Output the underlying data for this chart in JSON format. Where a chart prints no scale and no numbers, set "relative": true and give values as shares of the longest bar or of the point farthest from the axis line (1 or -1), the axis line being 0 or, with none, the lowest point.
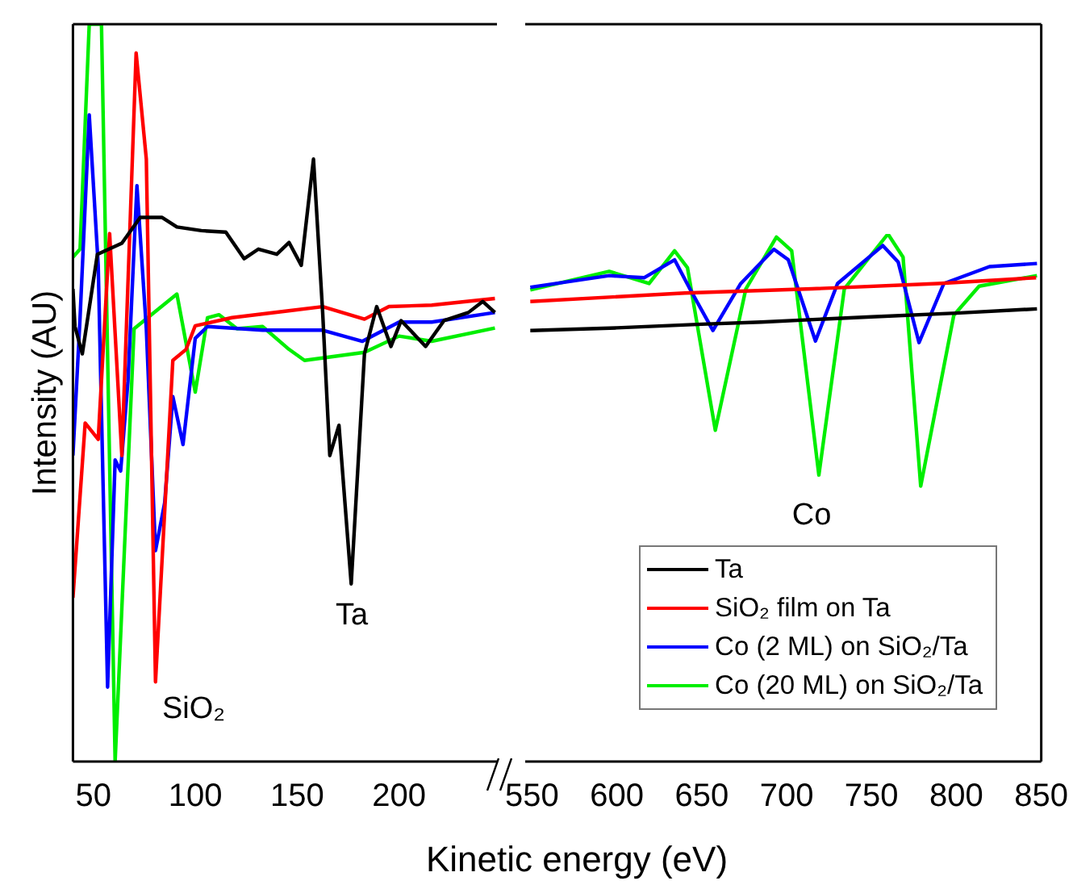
{
  "chart_data": [
    {
      "type": "line",
      "xlim": [
        40,
        248
      ],
      "xticks": [
        50,
        100,
        150,
        200
      ],
      "relative": true,
      "tick_labels": "x",
      "ylabel": "Intensity (AU)",
      "xlabel": "Kinetic energy (eV)",
      "annotations": [
        "SiO₂",
        "Ta"
      ],
      "series": [
        {
          "color": "#000000",
          "x": [
            40,
            41,
            44.6,
            52,
            64,
            73,
            83.6,
            91,
            103,
            115,
            124,
            131,
            140,
            146,
            152,
            158,
            162.5,
            166,
            170.5,
            176.5,
            183,
            189,
            196,
            201,
            213,
            222,
            234,
            241,
            247
          ],
          "values": [
            0.641,
            0.59,
            0.553,
            0.688,
            0.703,
            0.738,
            0.738,
            0.725,
            0.72,
            0.718,
            0.682,
            0.695,
            0.688,
            0.704,
            0.673,
            0.817,
            0.609,
            0.415,
            0.456,
            0.241,
            0.553,
            0.617,
            0.563,
            0.598,
            0.563,
            0.598,
            0.609,
            0.624,
            0.609
          ]
        },
        {
          "color": "#ff0000",
          "x": [
            40,
            46,
            52.4,
            58,
            64,
            71,
            76,
            80.5,
            89,
            95.5,
            100,
            118,
            145,
            162.5,
            183,
            195,
            216,
            247
          ],
          "values": [
            0.222,
            0.459,
            0.437,
            0.716,
            0.415,
            0.961,
            0.817,
            0.108,
            0.544,
            0.559,
            0.591,
            0.602,
            0.611,
            0.617,
            0.6,
            0.617,
            0.619,
            0.628
          ]
        },
        {
          "color": "#0000ff",
          "x": [
            40,
            43.5,
            48,
            52.4,
            57,
            60.7,
            63.4,
            67,
            71.4,
            76,
            80.5,
            85,
            89,
            94,
            100,
            106,
            133,
            162.5,
            182,
            200,
            216,
            247
          ],
          "values": [
            0.415,
            0.602,
            0.877,
            0.673,
            0.101,
            0.409,
            0.394,
            0.516,
            0.781,
            0.587,
            0.286,
            0.351,
            0.495,
            0.43,
            0.574,
            0.59,
            0.585,
            0.585,
            0.57,
            0.596,
            0.596,
            0.609
          ]
        },
        {
          "color": "#00ee00",
          "x": [
            40,
            43.5,
            48,
            54,
            60.7,
            70,
            91,
            100,
            106,
            111.6,
            120.5,
            133,
            146,
            153.6,
            183,
            200,
            216,
            247
          ],
          "values": [
            0.684,
            0.695,
            1,
            1,
            0,
            0.587,
            0.634,
            0.501,
            0.602,
            0.606,
            0.587,
            0.59,
            0.559,
            0.544,
            0.555,
            0.577,
            0.57,
            0.588
          ]
        }
      ]
    },
    {
      "type": "line",
      "xlim": [
        546,
        850
      ],
      "xticks": [
        550,
        600,
        650,
        700,
        750,
        800,
        850
      ],
      "relative": true,
      "tick_labels": "x",
      "legend": "bottom right",
      "annotations": [
        "Co"
      ],
      "series": [
        {
          "name": "Ta",
          "color": "#000000",
          "x": [
            549,
            600,
            650,
            685,
            750,
            800,
            847.5
          ],
          "values": [
            0.817,
            0.822,
            0.829,
            0.833,
            0.843,
            0.85,
            0.858
          ]
        },
        {
          "name": "SiO₂ film on Ta",
          "color": "#ff0000",
          "x": [
            549,
            640,
            715,
            789,
            847
          ],
          "values": [
            0.872,
            0.888,
            0.896,
            0.906,
            0.917
          ]
        },
        {
          "name": "Co (2 ML) on SiO₂/Ta",
          "color": "#0000ff",
          "x": [
            549,
            595.5,
            616,
            634,
            643,
            656.6,
            673,
            692.5,
            701,
            717,
            730,
            756.7,
            765.7,
            778,
            792.6,
            819.5,
            847.5
          ],
          "values": [
            0.899,
            0.921,
            0.917,
            0.951,
            0.896,
            0.817,
            0.906,
            0.971,
            0.951,
            0.797,
            0.906,
            0.978,
            0.947,
            0.794,
            0.906,
            0.938,
            0.944
          ]
        },
        {
          "name": "Co (20 ML) on SiO₂/Ta",
          "color": "#00ee00",
          "x": [
            549,
            595.5,
            619,
            634,
            641.6,
            658,
            676,
            694,
            703,
            719,
            734,
            759.7,
            768.6,
            779,
            798.5,
            813.4,
            847.5
          ],
          "values": [
            0.894,
            0.929,
            0.906,
            0.968,
            0.936,
            0.628,
            0.896,
            0.994,
            0.968,
            0.543,
            0.896,
            1,
            0.956,
            0.522,
            0.846,
            0.901,
            0.921
          ]
        }
      ]
    }
  ]
}
